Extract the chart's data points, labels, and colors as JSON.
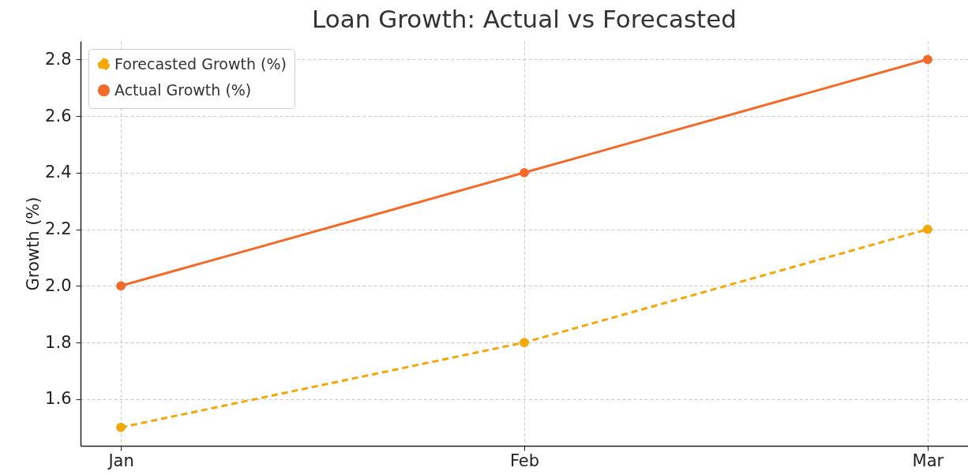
{
  "chart_data": {
    "type": "line",
    "title": "Loan Growth: Actual vs Forecasted",
    "ylabel": "Growth (%)",
    "categories": [
      "Jan",
      "Feb",
      "Mar"
    ],
    "series": [
      {
        "name": "Forecasted Growth (%)",
        "color": "#f5a70a",
        "values": [
          1.5,
          1.8,
          2.2
        ],
        "line_style": "dashed"
      },
      {
        "name": "Actual Growth (%)",
        "color": "#f26b2a",
        "values": [
          2.0,
          2.4,
          2.8
        ],
        "line_style": "solid"
      }
    ],
    "ylim": [
      1.435,
      2.865
    ],
    "yticks": [
      1.6,
      1.8,
      {
        "value": 2,
        "label": "2.0"
      },
      2.2,
      2.4,
      2.6,
      2.8
    ],
    "grid": true,
    "legend": "top left",
    "marker": "circle"
  }
}
